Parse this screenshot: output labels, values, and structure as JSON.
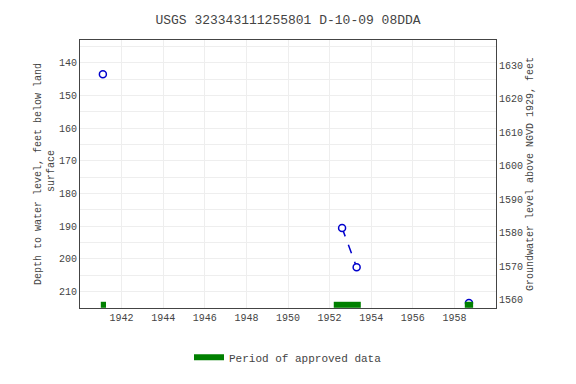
{
  "chart_data": {
    "type": "scatter",
    "title": "USGS 323343111255801 D-10-09 08DDA",
    "ylabel": "Depth to water level, feet below land\n surface",
    "y2label": "Groundwater level above NGVD 1929, feet",
    "series": [
      {
        "type": "line",
        "x": [
          1952.6,
          1953.3
        ],
        "values": [
          190.5,
          202.5
        ],
        "color": "#0000CC",
        "line_style": "dashed"
      },
      {
        "type": "scatter",
        "x": [
          1941.1,
          1952.6,
          1953.3,
          1958.7
        ],
        "values": [
          143.5,
          190.5,
          202.5,
          213.5
        ],
        "color": "#0000CC",
        "marker": "open circle"
      },
      {
        "type": "span",
        "name": "Period of approved data",
        "color": "#008000",
        "start": [
          1941.0,
          1952.2,
          1958.5
        ],
        "end": [
          1941.25,
          1953.5,
          1958.9
        ]
      }
    ],
    "xlim": [
      1940.0,
      1960.0
    ],
    "xticks": [
      1942,
      1944,
      1946,
      1948,
      1950,
      1952,
      1954,
      1956,
      1958
    ],
    "ylim": [
      215.0,
      133.0
    ],
    "yticks": [
      {
        "value": 135,
        "label": null
      },
      140,
      {
        "value": 145,
        "label": null
      },
      150,
      {
        "value": 155,
        "label": null
      },
      160,
      {
        "value": 165,
        "label": null
      },
      170,
      {
        "value": 175,
        "label": null
      },
      180,
      {
        "value": 185,
        "label": null
      },
      190,
      {
        "value": 195,
        "label": null
      },
      200,
      {
        "value": 205,
        "label": null
      },
      210,
      {
        "value": 215,
        "label": null
      }
    ],
    "y2lim": [
      1557.5,
      1637.5
    ],
    "y2ticks": [
      1560,
      1570,
      1580,
      1590,
      1600,
      1610,
      1620,
      1630
    ],
    "grid": true,
    "legend": "bottom"
  }
}
